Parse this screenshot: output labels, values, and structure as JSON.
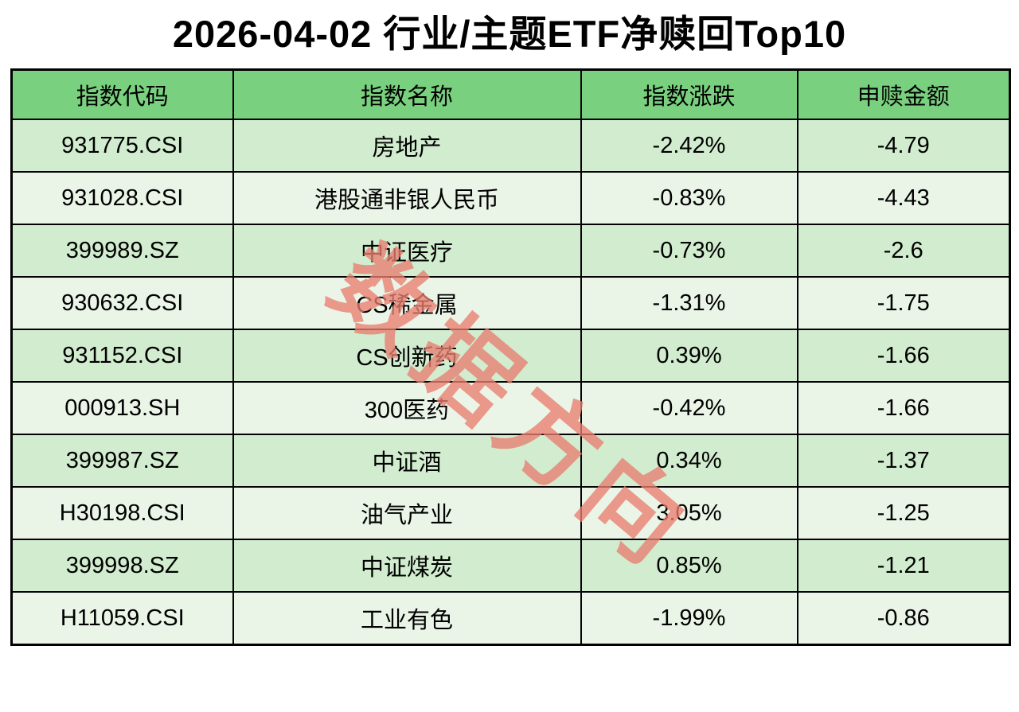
{
  "title": "2026-04-02 行业/主题ETF净赎回Top10",
  "watermark_text": "数据方向",
  "colors": {
    "header_bg": "#79d17f",
    "row_odd_bg": "#d1ecce",
    "row_even_bg": "#eaf5e7",
    "border": "#000000",
    "watermark": "#e97e71",
    "text": "#000000",
    "page_bg": "#ffffff"
  },
  "chart_data": {
    "type": "table",
    "title": "2026-04-02 行业/主题ETF净赎回Top10",
    "columns": [
      "指数代码",
      "指数名称",
      "指数涨跌",
      "申赎金额"
    ],
    "rows": [
      [
        "931775.CSI",
        "房地产",
        "-2.42%",
        "-4.79"
      ],
      [
        "931028.CSI",
        "港股通非银人民币",
        "-0.83%",
        "-4.43"
      ],
      [
        "399989.SZ",
        "中证医疗",
        "-0.73%",
        "-2.6"
      ],
      [
        "930632.CSI",
        "CS稀金属",
        "-1.31%",
        "-1.75"
      ],
      [
        "931152.CSI",
        "CS创新药",
        "0.39%",
        "-1.66"
      ],
      [
        "000913.SH",
        "300医药",
        "-0.42%",
        "-1.66"
      ],
      [
        "399987.SZ",
        "中证酒",
        "0.34%",
        "-1.37"
      ],
      [
        "H30198.CSI",
        "油气产业",
        "3.05%",
        "-1.25"
      ],
      [
        "399998.SZ",
        "中证煤炭",
        "0.85%",
        "-1.21"
      ],
      [
        "H11059.CSI",
        "工业有色",
        "-1.99%",
        "-0.86"
      ]
    ],
    "legend": null,
    "grid": true,
    "notes": "net redemption top10 table; alternating row shading; diagonal watermark overlay"
  }
}
